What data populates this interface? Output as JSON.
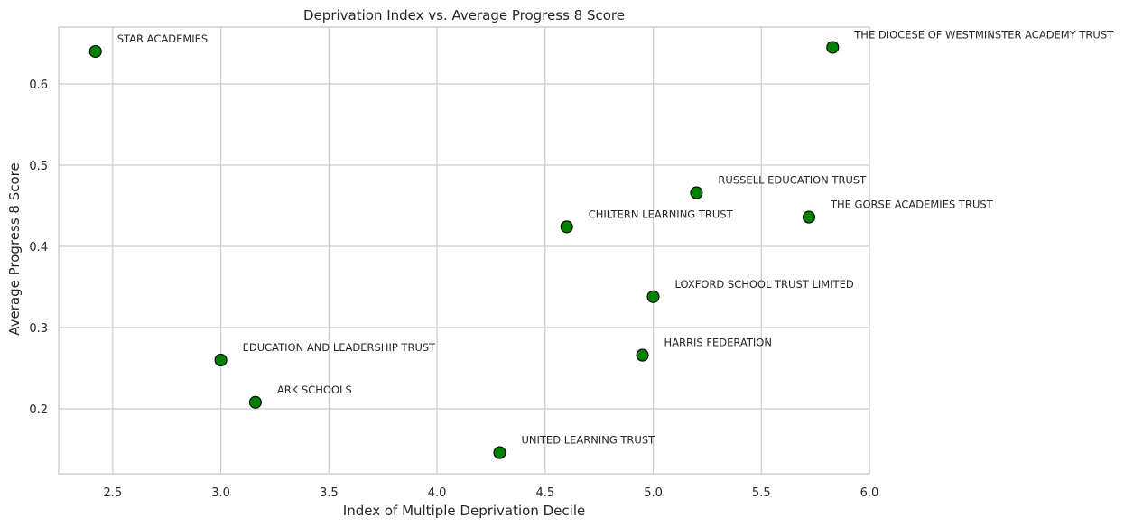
{
  "chart_data": {
    "type": "scatter",
    "title": "Deprivation Index vs. Average Progress 8 Score",
    "xlabel": "Index of Multiple Deprivation Decile",
    "ylabel": "Average Progress 8 Score",
    "xlim": [
      2.25,
      6.0
    ],
    "ylim": [
      0.12,
      0.67
    ],
    "xticks": [
      2.5,
      3.0,
      3.5,
      4.0,
      4.5,
      5.0,
      5.5,
      6.0
    ],
    "xtick_labels": [
      "2.5",
      "3.0",
      "3.5",
      "4.0",
      "4.5",
      "5.0",
      "5.5",
      "6.0"
    ],
    "yticks": [
      0.2,
      0.3,
      0.4,
      0.5,
      0.6
    ],
    "ytick_labels": [
      "0.2",
      "0.3",
      "0.4",
      "0.5",
      "0.6"
    ],
    "grid": true,
    "marker_color": "#008000",
    "marker_edge_color": "#000000",
    "points": [
      {
        "label": "STAR ACADEMIES",
        "x": 2.42,
        "y": 0.64
      },
      {
        "label": "THE DIOCESE OF WESTMINSTER ACADEMY TRUST",
        "x": 5.83,
        "y": 0.645
      },
      {
        "label": "RUSSELL EDUCATION TRUST",
        "x": 5.2,
        "y": 0.466
      },
      {
        "label": "THE GORSE ACADEMIES TRUST",
        "x": 5.72,
        "y": 0.436
      },
      {
        "label": "CHILTERN LEARNING TRUST",
        "x": 4.6,
        "y": 0.424
      },
      {
        "label": "LOXFORD SCHOOL TRUST LIMITED",
        "x": 5.0,
        "y": 0.338
      },
      {
        "label": "HARRIS FEDERATION",
        "x": 4.95,
        "y": 0.266
      },
      {
        "label": "EDUCATION AND LEADERSHIP TRUST",
        "x": 3.0,
        "y": 0.26
      },
      {
        "label": "ARK SCHOOLS",
        "x": 3.16,
        "y": 0.208
      },
      {
        "label": "UNITED LEARNING TRUST",
        "x": 4.29,
        "y": 0.146
      }
    ]
  }
}
